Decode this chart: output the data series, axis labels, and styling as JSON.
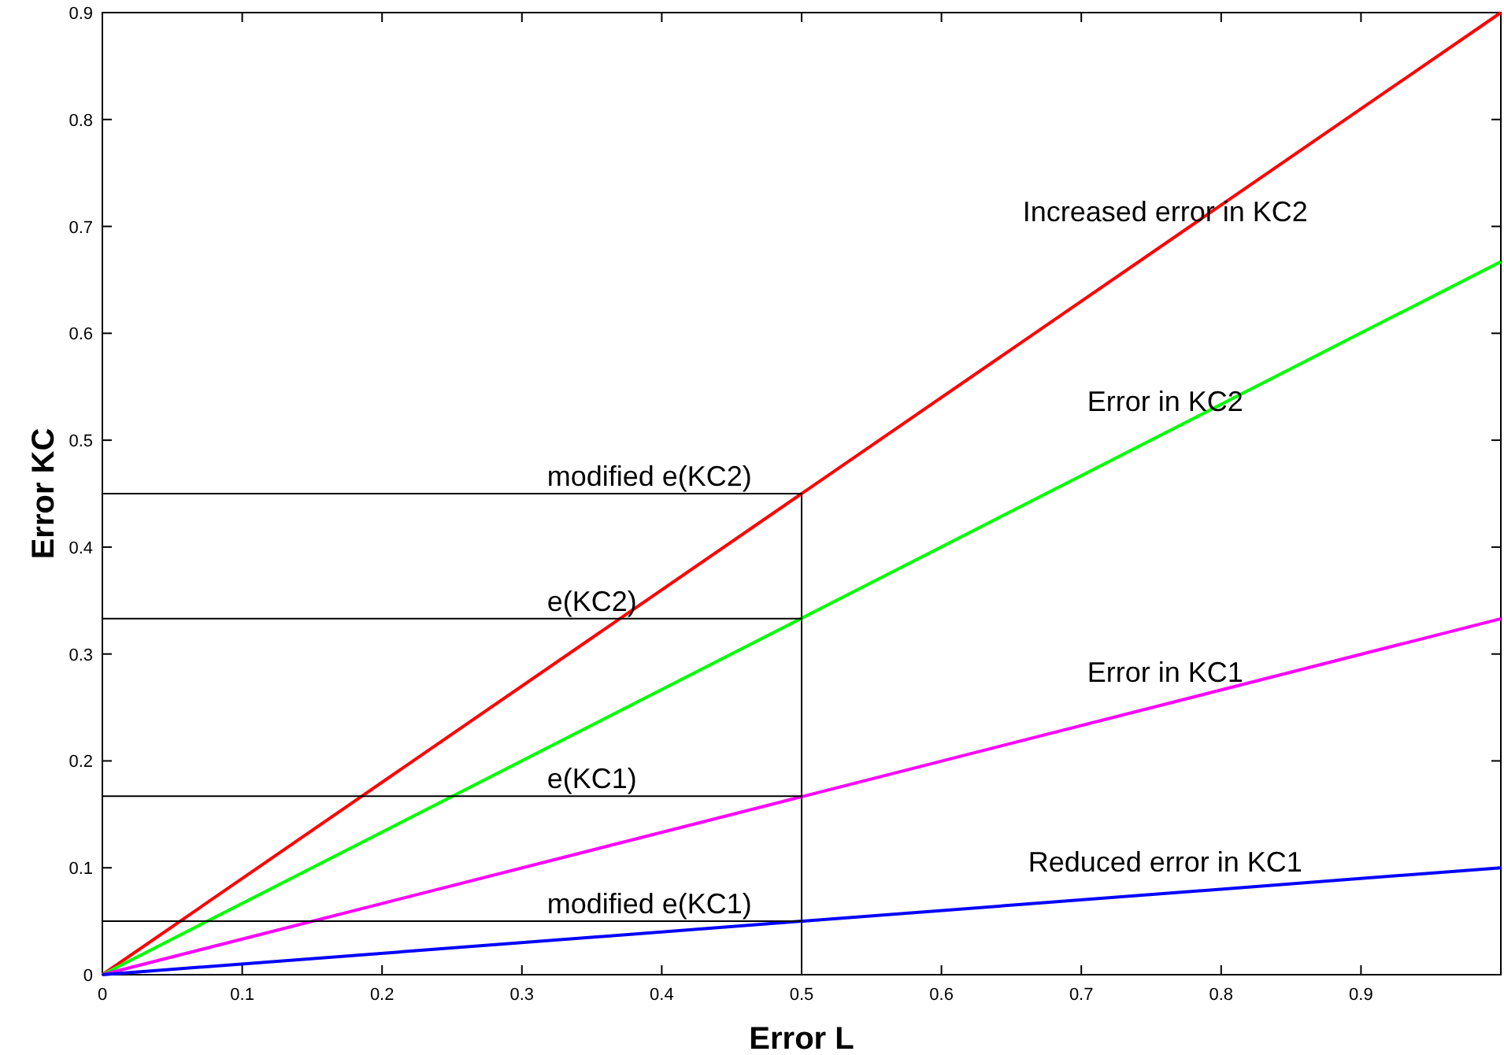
{
  "chart_data": {
    "type": "line",
    "xlabel": "Error L",
    "ylabel": "Error KC",
    "xlim": [
      0,
      1
    ],
    "ylim": [
      0,
      0.9
    ],
    "xticks": [
      0,
      0.1,
      0.2,
      0.3,
      0.4,
      0.5,
      0.6,
      0.7,
      0.8,
      0.9
    ],
    "yticks": [
      0,
      0.1,
      0.2,
      0.3,
      0.4,
      0.5,
      0.6,
      0.7,
      0.8,
      0.9
    ],
    "grid": false,
    "marker": "none",
    "line_style": "solid",
    "series": [
      {
        "name": "Increased error in KC2",
        "color": "#ff0000",
        "x": [
          0,
          1
        ],
        "values": [
          0,
          0.9
        ]
      },
      {
        "name": "Error in KC2",
        "color": "#00ff00",
        "x": [
          0,
          1
        ],
        "values": [
          0,
          0.667
        ]
      },
      {
        "name": "Error in KC1",
        "color": "#ff00ff",
        "x": [
          0,
          1
        ],
        "values": [
          0,
          0.333
        ]
      },
      {
        "name": "Reduced error in KC1",
        "color": "#0000ff",
        "x": [
          0,
          1
        ],
        "values": [
          0,
          0.1
        ]
      },
      {
        "color": "#000000",
        "x": [
          0,
          0.5,
          0.5
        ],
        "values": [
          0.45,
          0.45,
          0
        ]
      },
      {
        "color": "#000000",
        "x": [
          0,
          0.5
        ],
        "values": [
          0.333,
          0.333
        ]
      },
      {
        "color": "#000000",
        "x": [
          0,
          0.5
        ],
        "values": [
          0.167,
          0.167
        ]
      },
      {
        "color": "#000000",
        "x": [
          0,
          0.5
        ],
        "values": [
          0.05,
          0.05
        ]
      }
    ],
    "annotations": [
      {
        "text": "modified e(KC2)",
        "y": 0.45
      },
      {
        "text": "e(KC2)",
        "y": 0.333
      },
      {
        "text": "e(KC1)",
        "y": 0.167
      },
      {
        "text": "modified e(KC1)",
        "y": 0.05
      }
    ]
  }
}
